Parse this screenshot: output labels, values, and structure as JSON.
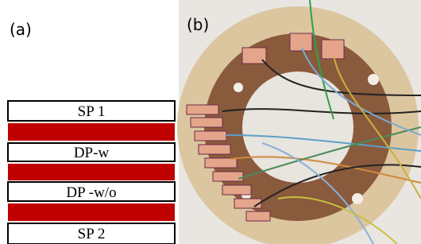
{
  "panels": [
    {
      "label": "(a)",
      "layers": [
        "SP 1",
        "DP-w",
        "DP -w/o",
        "SP 2"
      ]
    },
    {
      "label": "(b)"
    }
  ]
}
